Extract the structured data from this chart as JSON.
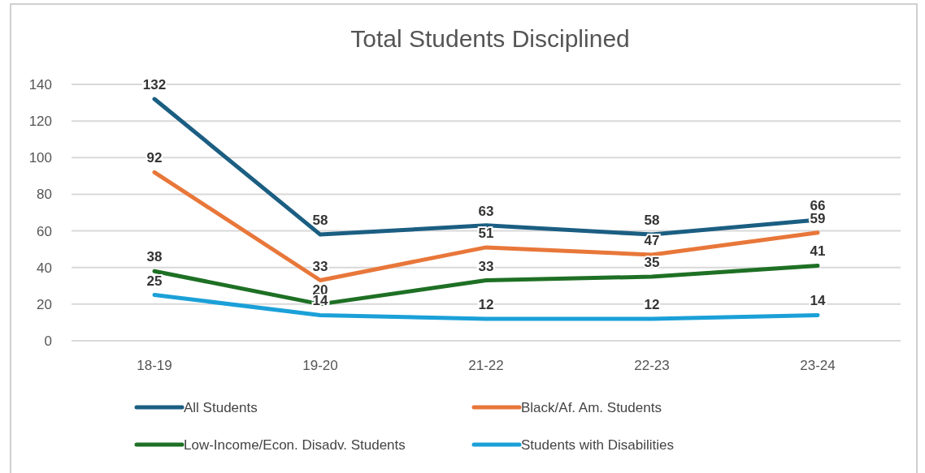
{
  "chart_data": {
    "type": "line",
    "title": "Total Students Disciplined",
    "categories": [
      "18-19",
      "19-20",
      "21-22",
      "22-23",
      "23-24"
    ],
    "series": [
      {
        "name": "All Students",
        "color": "#1b5e82",
        "values": [
          132,
          58,
          63,
          58,
          66
        ]
      },
      {
        "name": "Black/Af. Am. Students",
        "color": "#e8773a",
        "values": [
          92,
          33,
          51,
          47,
          59
        ]
      },
      {
        "name": "Low-Income/Econ. Disadv. Students",
        "color": "#1e7024",
        "values": [
          38,
          20,
          33,
          35,
          41
        ]
      },
      {
        "name": "Students with Disabilities",
        "color": "#1ba0d8",
        "values": [
          25,
          14,
          12,
          12,
          14
        ]
      }
    ],
    "ylim": [
      0,
      140
    ],
    "yticks": [
      0,
      20,
      40,
      60,
      80,
      100,
      120,
      140
    ],
    "grid": "y",
    "legend": "bottom",
    "data_labels": true,
    "marker": "none",
    "line_style": "solid"
  }
}
